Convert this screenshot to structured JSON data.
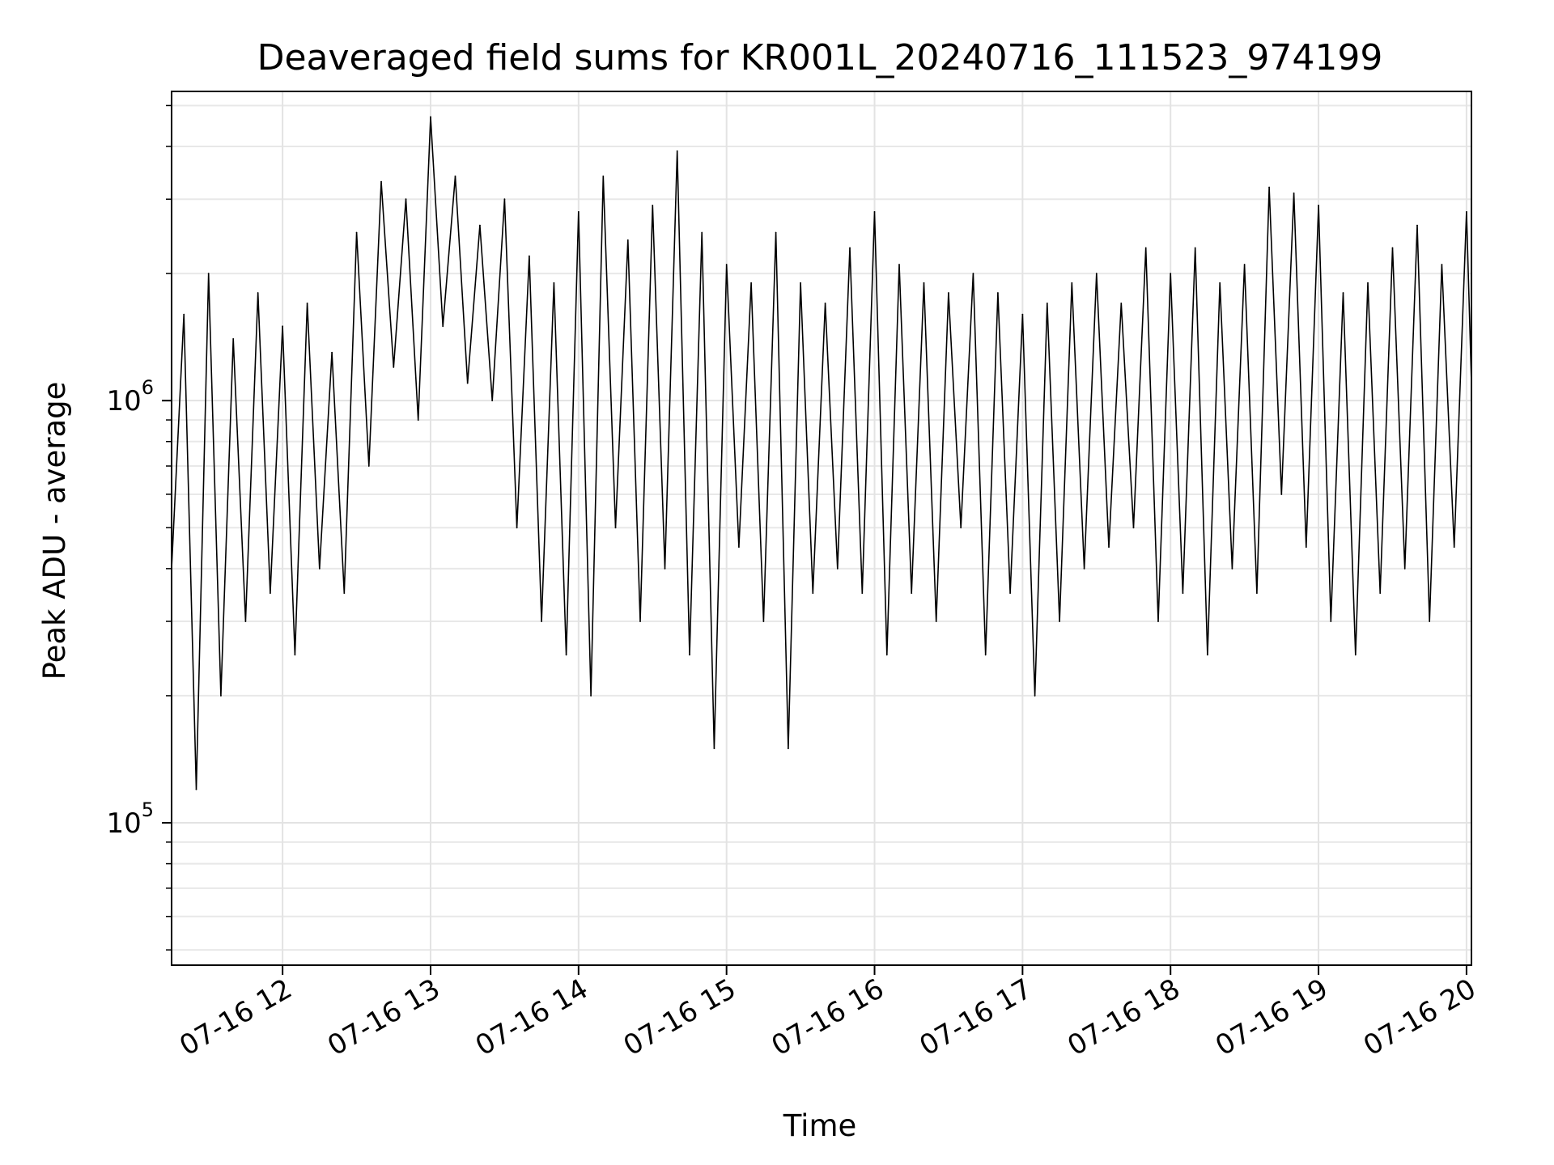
{
  "chart_data": {
    "type": "line",
    "title": "Deaveraged field sums for KR001L_20240716_111523_974199",
    "xlabel": "Time",
    "ylabel": "Peak ADU - average",
    "yscale": "log",
    "xlim": [
      "07-16 11:15",
      "07-16 20:02"
    ],
    "ylim": [
      46000,
      5400000
    ],
    "grid": true,
    "x_ticks": [
      {
        "value": "07-16 12:00",
        "label": "07-16 12"
      },
      {
        "value": "07-16 13:00",
        "label": "07-16 13"
      },
      {
        "value": "07-16 14:00",
        "label": "07-16 14"
      },
      {
        "value": "07-16 15:00",
        "label": "07-16 15"
      },
      {
        "value": "07-16 16:00",
        "label": "07-16 16"
      },
      {
        "value": "07-16 17:00",
        "label": "07-16 17"
      },
      {
        "value": "07-16 18:00",
        "label": "07-16 18"
      },
      {
        "value": "07-16 19:00",
        "label": "07-16 19"
      },
      {
        "value": "07-16 20:00",
        "label": "07-16 20"
      }
    ],
    "y_ticks": [
      {
        "value": 100000,
        "base": "10",
        "exp": "5"
      },
      {
        "value": 1000000,
        "base": "10",
        "exp": "6"
      }
    ],
    "series": [
      {
        "name": "",
        "color": "#000000",
        "x": [
          "07-16 11:15",
          "07-16 11:20",
          "07-16 11:25",
          "07-16 11:30",
          "07-16 11:35",
          "07-16 11:40",
          "07-16 11:45",
          "07-16 11:50",
          "07-16 11:55",
          "07-16 12:00",
          "07-16 12:05",
          "07-16 12:10",
          "07-16 12:15",
          "07-16 12:20",
          "07-16 12:25",
          "07-16 12:30",
          "07-16 12:35",
          "07-16 12:40",
          "07-16 12:45",
          "07-16 12:50",
          "07-16 12:55",
          "07-16 13:00",
          "07-16 13:05",
          "07-16 13:10",
          "07-16 13:15",
          "07-16 13:20",
          "07-16 13:25",
          "07-16 13:30",
          "07-16 13:35",
          "07-16 13:40",
          "07-16 13:45",
          "07-16 13:50",
          "07-16 13:55",
          "07-16 14:00",
          "07-16 14:05",
          "07-16 14:10",
          "07-16 14:15",
          "07-16 14:20",
          "07-16 14:25",
          "07-16 14:30",
          "07-16 14:35",
          "07-16 14:40",
          "07-16 14:45",
          "07-16 14:50",
          "07-16 14:55",
          "07-16 15:00",
          "07-16 15:05",
          "07-16 15:10",
          "07-16 15:15",
          "07-16 15:20",
          "07-16 15:25",
          "07-16 15:30",
          "07-16 15:35",
          "07-16 15:40",
          "07-16 15:45",
          "07-16 15:50",
          "07-16 15:55",
          "07-16 16:00",
          "07-16 16:05",
          "07-16 16:10",
          "07-16 16:15",
          "07-16 16:20",
          "07-16 16:25",
          "07-16 16:30",
          "07-16 16:35",
          "07-16 16:40",
          "07-16 16:45",
          "07-16 16:50",
          "07-16 16:55",
          "07-16 17:00",
          "07-16 17:05",
          "07-16 17:10",
          "07-16 17:15",
          "07-16 17:20",
          "07-16 17:25",
          "07-16 17:30",
          "07-16 17:35",
          "07-16 17:40",
          "07-16 17:45",
          "07-16 17:50",
          "07-16 17:55",
          "07-16 18:00",
          "07-16 18:05",
          "07-16 18:10",
          "07-16 18:15",
          "07-16 18:20",
          "07-16 18:25",
          "07-16 18:30",
          "07-16 18:35",
          "07-16 18:40",
          "07-16 18:45",
          "07-16 18:50",
          "07-16 18:55",
          "07-16 19:00",
          "07-16 19:05",
          "07-16 19:10",
          "07-16 19:15",
          "07-16 19:20",
          "07-16 19:25",
          "07-16 19:30",
          "07-16 19:35",
          "07-16 19:40",
          "07-16 19:45",
          "07-16 19:50",
          "07-16 19:55",
          "07-16 20:00",
          "07-16 20:02"
        ],
        "y": [
          400000,
          1600000,
          120000,
          2000000,
          200000,
          1400000,
          300000,
          1800000,
          350000,
          1500000,
          250000,
          1700000,
          400000,
          1300000,
          350000,
          2500000,
          700000,
          3300000,
          1200000,
          3000000,
          900000,
          4700000,
          1500000,
          3400000,
          1100000,
          2600000,
          1000000,
          3000000,
          500000,
          2200000,
          300000,
          1900000,
          250000,
          2800000,
          200000,
          3400000,
          500000,
          2400000,
          300000,
          2900000,
          400000,
          3900000,
          250000,
          2500000,
          150000,
          2100000,
          450000,
          1900000,
          300000,
          2500000,
          150000,
          1900000,
          350000,
          1700000,
          400000,
          2300000,
          350000,
          2800000,
          250000,
          2100000,
          350000,
          1900000,
          300000,
          1800000,
          500000,
          2000000,
          250000,
          1800000,
          350000,
          1600000,
          200000,
          1700000,
          300000,
          1900000,
          400000,
          2000000,
          450000,
          1700000,
          500000,
          2300000,
          300000,
          2000000,
          350000,
          2300000,
          250000,
          1900000,
          400000,
          2100000,
          350000,
          3200000,
          600000,
          3100000,
          450000,
          2900000,
          300000,
          1800000,
          250000,
          1900000,
          350000,
          2300000,
          400000,
          2600000,
          300000,
          2100000,
          450000,
          2800000,
          1100000
        ]
      }
    ]
  }
}
